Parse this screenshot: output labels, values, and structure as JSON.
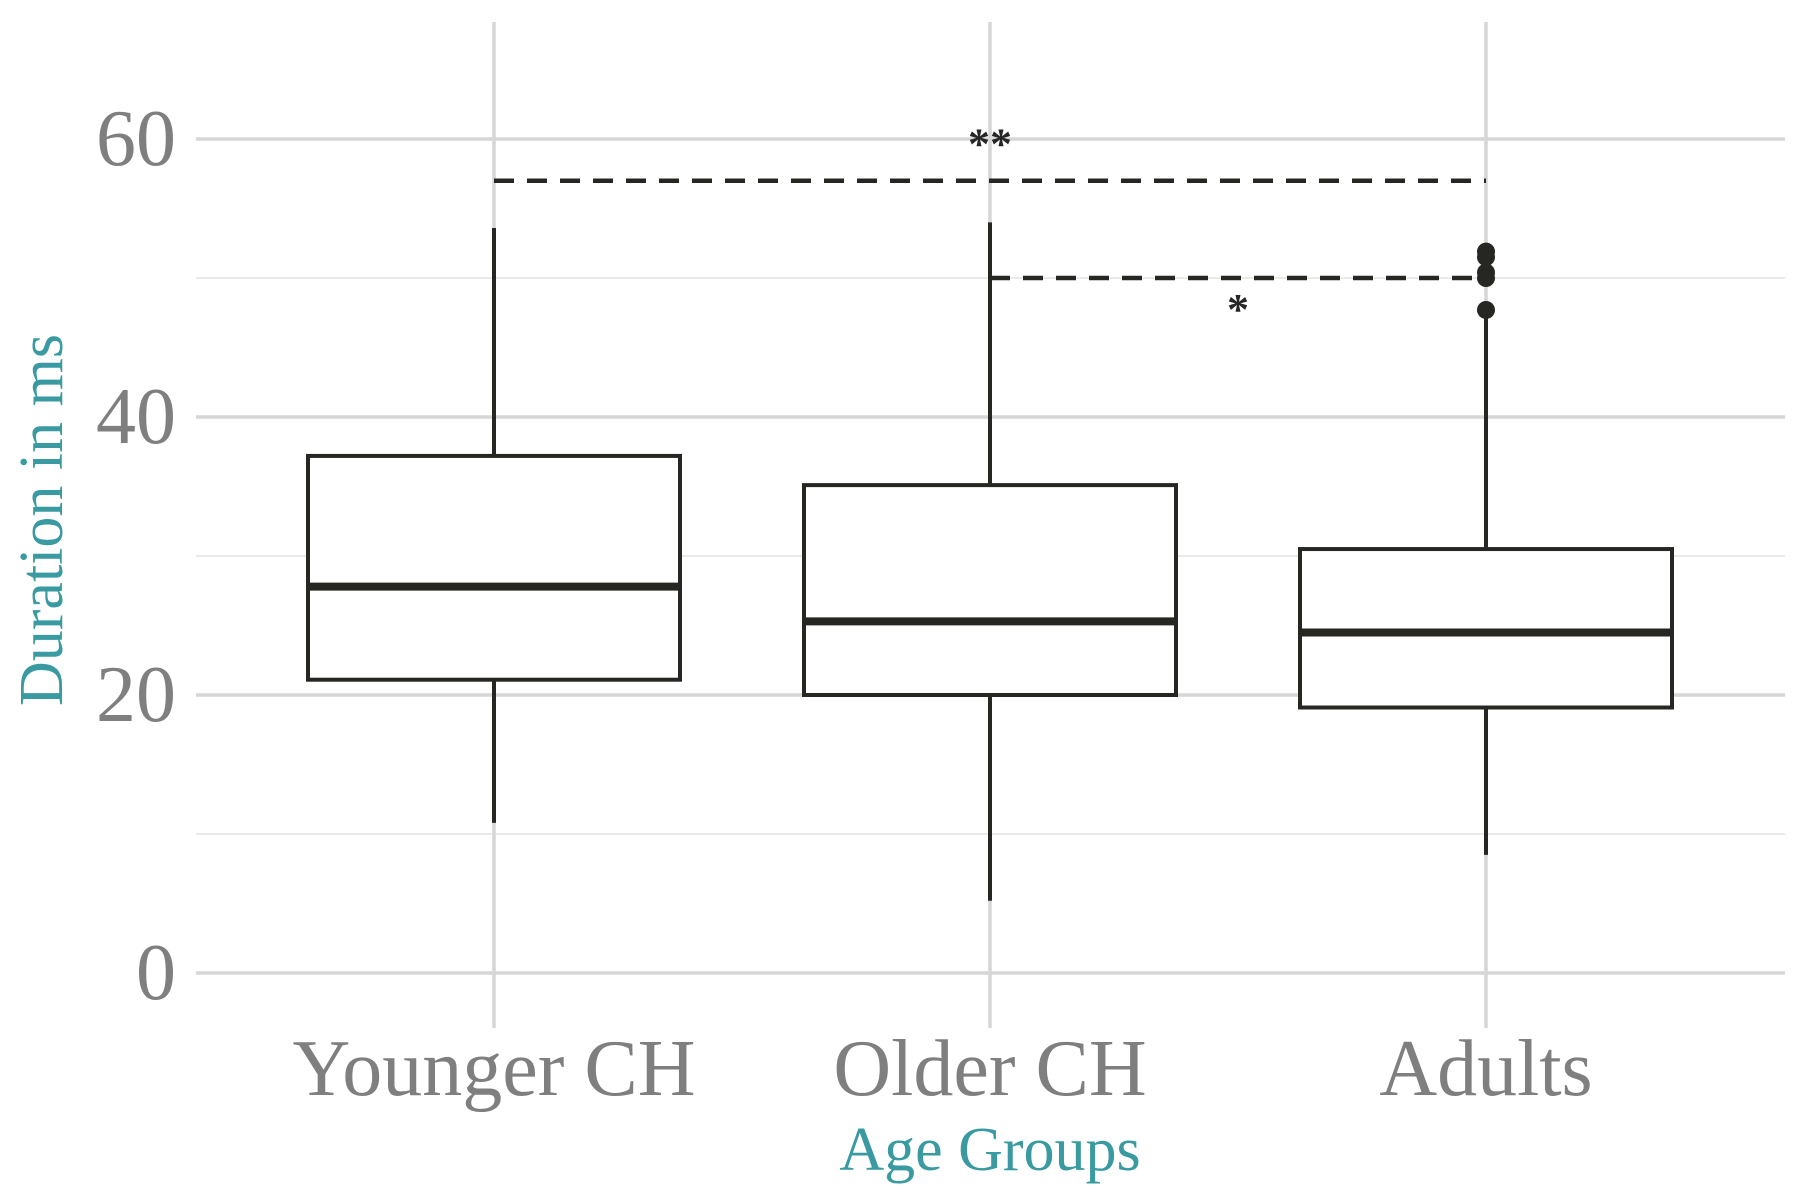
{
  "chart_data": {
    "type": "box",
    "xlabel": "Age Groups",
    "ylabel": "Duration in ms",
    "ylim": [
      -4,
      68
    ],
    "yticks": [
      0,
      20,
      40,
      60
    ],
    "grid": true,
    "colors": {
      "axis_title": "#3a9aa2",
      "tick_label": "#7f7f7f",
      "grid_major": "#d6d6d6",
      "grid_minor": "#ebebeb",
      "box_stroke": "#262622",
      "box_fill": "#ffffff"
    },
    "categories": [
      "Younger CH",
      "Older CH",
      "Adults"
    ],
    "boxes": [
      {
        "name": "Younger CH",
        "whisker_low": 10.8,
        "q1": 21.1,
        "median": 27.8,
        "q3": 37.2,
        "whisker_high": 53.6,
        "outliers": []
      },
      {
        "name": "Older CH",
        "whisker_low": 5.2,
        "q1": 20.0,
        "median": 25.3,
        "q3": 35.1,
        "whisker_high": 54.0,
        "outliers": []
      },
      {
        "name": "Adults",
        "whisker_low": 8.5,
        "q1": 19.1,
        "median": 24.5,
        "q3": 30.5,
        "whisker_high": 47.5,
        "outliers": [
          47.7,
          50.0,
          50.4,
          51.5,
          51.9
        ]
      }
    ],
    "significance": [
      {
        "from": "Younger CH",
        "to": "Adults",
        "y": 57,
        "label": "**"
      },
      {
        "from": "Older CH",
        "to": "Adults",
        "y": 50,
        "label": "*"
      }
    ]
  }
}
